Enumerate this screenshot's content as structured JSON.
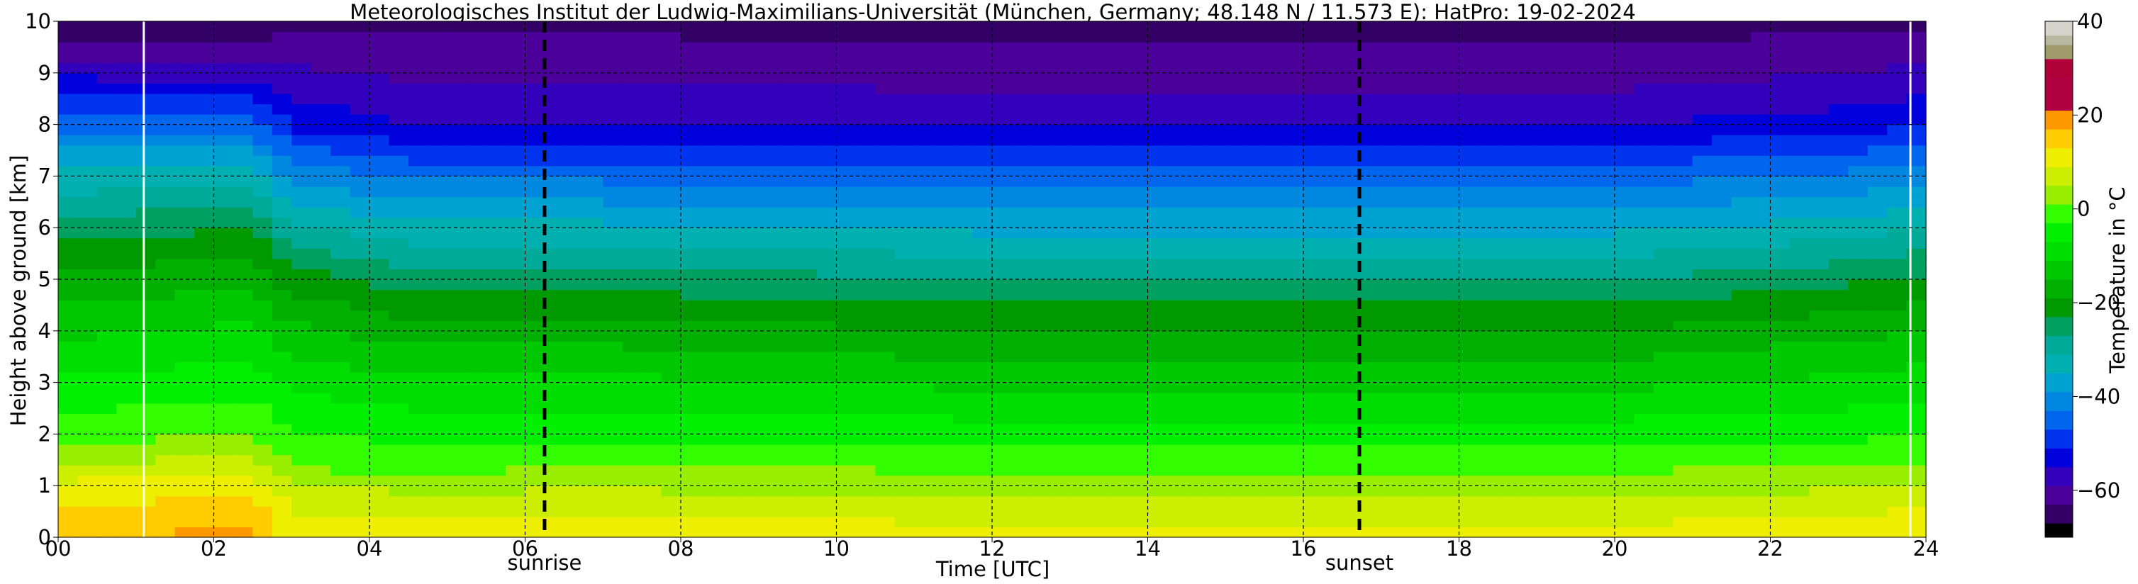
{
  "chart_data": {
    "type": "heatmap",
    "title": "Meteorologisches Institut der Ludwig-Maximilians-Universität (München, Germany; 48.148 N / 11.573 E):    HatPro: 19-02-2024",
    "xlabel": "Time [UTC]",
    "ylabel": "Height above ground [km]",
    "xlim": [
      0,
      24
    ],
    "ylim": [
      0,
      10
    ],
    "x_ticks": [
      0,
      2,
      4,
      6,
      8,
      10,
      12,
      14,
      16,
      18,
      20,
      22,
      24
    ],
    "x_tick_labels": [
      "00",
      "02",
      "04",
      "06",
      "08",
      "10",
      "12",
      "14",
      "16",
      "18",
      "20",
      "22",
      "24"
    ],
    "y_ticks": [
      0,
      1,
      2,
      3,
      4,
      5,
      6,
      7,
      8,
      9,
      10
    ],
    "y_tick_labels": [
      "0",
      "1",
      "2",
      "3",
      "4",
      "5",
      "6",
      "7",
      "8",
      "9",
      "10"
    ],
    "grid": true,
    "events": [
      {
        "label": "sunrise",
        "x": 6.25
      },
      {
        "label": "sunset",
        "x": 16.72
      }
    ],
    "data_gaps": [
      1.1,
      23.8
    ],
    "colorbar": {
      "label": "Temperature in °C",
      "range": [
        -70,
        40
      ],
      "ticks": [
        -60,
        -40,
        -20,
        0,
        20,
        40
      ],
      "tick_labels": [
        "−60",
        "−40",
        "−20",
        "0",
        "20",
        "40"
      ],
      "colors": [
        {
          "from": -70,
          "to": -67,
          "color": "#000000"
        },
        {
          "from": -67,
          "to": -63,
          "color": "#330066"
        },
        {
          "from": -63,
          "to": -59,
          "color": "#4b0099"
        },
        {
          "from": -59,
          "to": -55,
          "color": "#3300bb"
        },
        {
          "from": -55,
          "to": -51,
          "color": "#0000dd"
        },
        {
          "from": -51,
          "to": -47,
          "color": "#0033ee"
        },
        {
          "from": -47,
          "to": -43,
          "color": "#0066ee"
        },
        {
          "from": -43,
          "to": -39,
          "color": "#0088e0"
        },
        {
          "from": -39,
          "to": -35,
          "color": "#00a2d2"
        },
        {
          "from": -35,
          "to": -31,
          "color": "#00b0b0"
        },
        {
          "from": -31,
          "to": -27,
          "color": "#00aa99"
        },
        {
          "from": -27,
          "to": -23,
          "color": "#00a060"
        },
        {
          "from": -23,
          "to": -19,
          "color": "#009900"
        },
        {
          "from": -19,
          "to": -15,
          "color": "#00b000"
        },
        {
          "from": -15,
          "to": -11,
          "color": "#00c800"
        },
        {
          "from": -11,
          "to": -7,
          "color": "#00dd00"
        },
        {
          "from": -7,
          "to": -3,
          "color": "#00f000"
        },
        {
          "from": -3,
          "to": 1,
          "color": "#33ff00"
        },
        {
          "from": 1,
          "to": 5,
          "color": "#99ee00"
        },
        {
          "from": 5,
          "to": 9,
          "color": "#ccee00"
        },
        {
          "from": 9,
          "to": 13,
          "color": "#eeee00"
        },
        {
          "from": 13,
          "to": 17,
          "color": "#ffcc00"
        },
        {
          "from": 17,
          "to": 21,
          "color": "#ff9900"
        },
        {
          "from": 21,
          "to": 24,
          "color": "#b00040"
        },
        {
          "from": 24,
          "to": 28,
          "color": "#b00040"
        },
        {
          "from": 28,
          "to": 32,
          "color": "#b0003a"
        },
        {
          "from": 32,
          "to": 35,
          "color": "#a09a6a"
        },
        {
          "from": 35,
          "to": 37,
          "color": "#b8b8a0"
        },
        {
          "from": 37,
          "to": 40,
          "color": "#d4d4cc"
        }
      ]
    },
    "profiles": [
      {
        "t": 0.0,
        "t0": 17,
        "z": [
          0,
          1.0,
          1.5,
          2.0,
          3.0,
          4.0,
          5.0,
          6.0,
          7.0,
          8.0,
          8.5,
          9.0,
          10.0
        ],
        "T": [
          17,
          10,
          4,
          -1,
          -6,
          -12,
          -18,
          -25,
          -34,
          -44,
          -50,
          -56,
          -66
        ]
      },
      {
        "t": 2.5,
        "t0": 18,
        "z": [
          0,
          1.0,
          1.5,
          2.0,
          3.0,
          4.0,
          5.0,
          6.0,
          7.0,
          8.0,
          8.5,
          9.0,
          10.0
        ],
        "T": [
          18,
          12,
          6,
          1,
          -5,
          -10,
          -16,
          -23,
          -33,
          -45,
          -50,
          -57,
          -66
        ]
      },
      {
        "t": 3.0,
        "t0": 12,
        "z": [
          0,
          0.8,
          1.2,
          2.0,
          3.0,
          4.0,
          5.0,
          6.0,
          7.0,
          8.0,
          9.0,
          10.0
        ],
        "T": [
          12,
          7,
          2,
          -3,
          -8,
          -14,
          -21,
          -30,
          -40,
          -52,
          -58,
          -64
        ]
      },
      {
        "t": 4.5,
        "t0": 11,
        "z": [
          0,
          0.8,
          1.2,
          2.0,
          3.0,
          4.0,
          5.0,
          6.0,
          7.0,
          8.0,
          9.0,
          10.0
        ],
        "T": [
          11,
          6,
          1,
          -4,
          -10,
          -17,
          -25,
          -34,
          -44,
          -55,
          -60,
          -64
        ]
      },
      {
        "t": 7.0,
        "t0": 12,
        "z": [
          0,
          0.8,
          1.5,
          2.0,
          3.0,
          4.0,
          5.0,
          6.0,
          7.0,
          8.0,
          9.0,
          10.0
        ],
        "T": [
          12,
          6,
          0,
          -4,
          -10,
          -17,
          -25,
          -34,
          -44,
          -55,
          -60,
          -64
        ]
      },
      {
        "t": 12.0,
        "t0": 11,
        "z": [
          0,
          0.8,
          1.5,
          2.0,
          3.0,
          4.0,
          5.0,
          6.0,
          7.0,
          8.0,
          9.0,
          10.0
        ],
        "T": [
          11,
          5,
          -1,
          -5,
          -12,
          -19,
          -27,
          -36,
          -45,
          -55,
          -61,
          -65
        ]
      },
      {
        "t": 20.0,
        "t0": 11,
        "z": [
          0,
          0.8,
          1.5,
          2.0,
          3.0,
          4.0,
          5.0,
          6.0,
          7.0,
          8.0,
          9.0,
          10.0
        ],
        "T": [
          11,
          5,
          -1,
          -5,
          -12,
          -19,
          -27,
          -36,
          -45,
          -55,
          -61,
          -65
        ]
      },
      {
        "t": 23.0,
        "t0": 12,
        "z": [
          0,
          0.8,
          1.5,
          2.0,
          3.0,
          4.0,
          5.0,
          6.0,
          7.0,
          8.0,
          9.0,
          10.0
        ],
        "T": [
          12,
          6,
          0,
          -4,
          -10,
          -16,
          -24,
          -33,
          -42,
          -53,
          -59,
          -64
        ]
      },
      {
        "t": 24.0,
        "t0": 14,
        "z": [
          0,
          0.8,
          1.5,
          2.0,
          3.0,
          4.0,
          5.0,
          6.0,
          7.0,
          8.0,
          9.0,
          10.0
        ],
        "T": [
          14,
          7,
          1,
          -3,
          -9,
          -15,
          -22,
          -31,
          -41,
          -51,
          -58,
          -64
        ]
      }
    ]
  }
}
